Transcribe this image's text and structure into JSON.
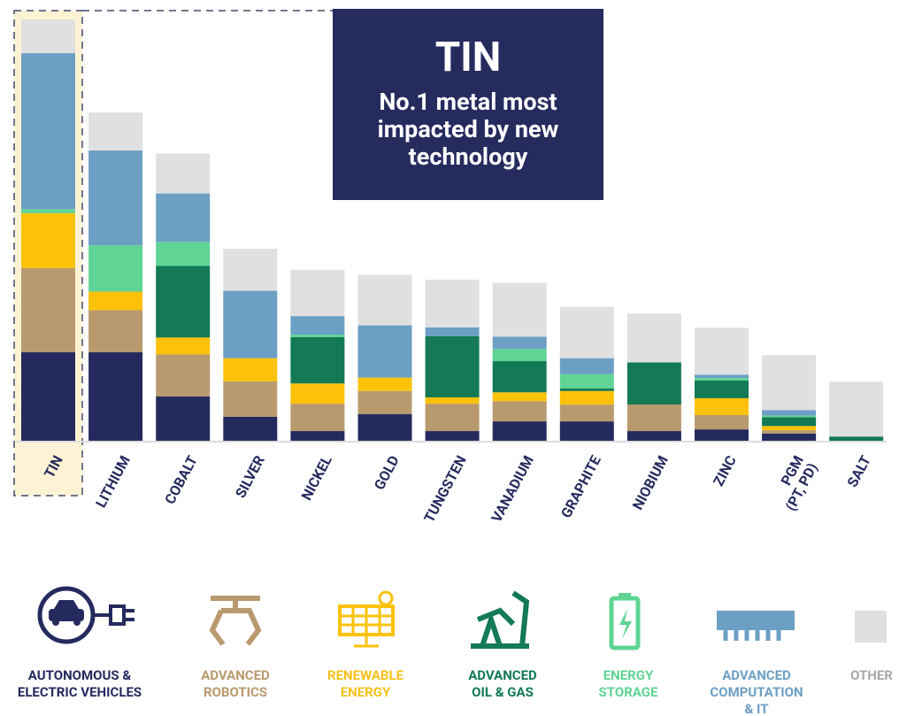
{
  "chart_data": {
    "type": "bar",
    "stacked": true,
    "title": "TIN",
    "subtitle": "No.1 metal most impacted by new technology",
    "categories": [
      "TIN",
      "LITHIUM",
      "COBALT",
      "SILVER",
      "NICKEL",
      "GOLD",
      "TUNGSTEN",
      "VANADIUM",
      "GRAPHITE",
      "NIOBIUM",
      "ZINC",
      "PGM\n(PT, PD)",
      "SALT"
    ],
    "ylim": [
      0,
      100
    ],
    "series": [
      {
        "name": "AUTONOMOUS &\nELECTRIC VEHICLES",
        "color": "#252a5e",
        "label_color": "#252a5e",
        "values": [
          21,
          21,
          10.5,
          5.7,
          2.3,
          6.3,
          2.3,
          4.6,
          4.6,
          2.3,
          2.7,
          1.7,
          0
        ]
      },
      {
        "name": "ADVANCED\nROBOTICS",
        "color": "#b89a6e",
        "label_color": "#b89a6e",
        "values": [
          20,
          10,
          10,
          8.4,
          6.5,
          5.5,
          6.5,
          4.8,
          4,
          6.3,
          3.4,
          0.8,
          0
        ]
      },
      {
        "name": "RENEWABLE\nENERGY",
        "color": "#fcc20a",
        "label_color": "#f6c11b",
        "values": [
          13,
          4.4,
          4,
          5.5,
          4.8,
          3.2,
          1.5,
          2.1,
          3.2,
          0,
          4,
          1,
          0
        ]
      },
      {
        "name": "ADVANCED\nOIL & GAS",
        "color": "#137a55",
        "label_color": "#137a55",
        "values": [
          0,
          0,
          17,
          0,
          11,
          0,
          14.5,
          7.4,
          0.6,
          10,
          4.2,
          2.1,
          1
        ]
      },
      {
        "name": "ENERGY\nSTORAGE",
        "color": "#5fd494",
        "label_color": "#5fd494",
        "values": [
          1,
          11,
          5.7,
          0,
          0.6,
          0,
          0,
          2.9,
          3.4,
          0,
          0.6,
          0.4,
          0
        ]
      },
      {
        "name": "ADVANCED\nCOMPUTATION\n& IT",
        "color": "#6c9fc4",
        "label_color": "#6c9fc4",
        "values": [
          37,
          22.5,
          11.5,
          16,
          4.4,
          12.4,
          2.1,
          2.9,
          3.8,
          0,
          0.8,
          1.3,
          0
        ]
      },
      {
        "name": "OTHER",
        "color": "#e0e0e0",
        "label_color": "#a8a8a8",
        "values": [
          8,
          9,
          9.5,
          10,
          11,
          12,
          11.3,
          12.8,
          12.2,
          11.6,
          11.1,
          13,
          13
        ]
      }
    ],
    "highlight_index": 0,
    "highlight_color": "#fdf3d4"
  }
}
